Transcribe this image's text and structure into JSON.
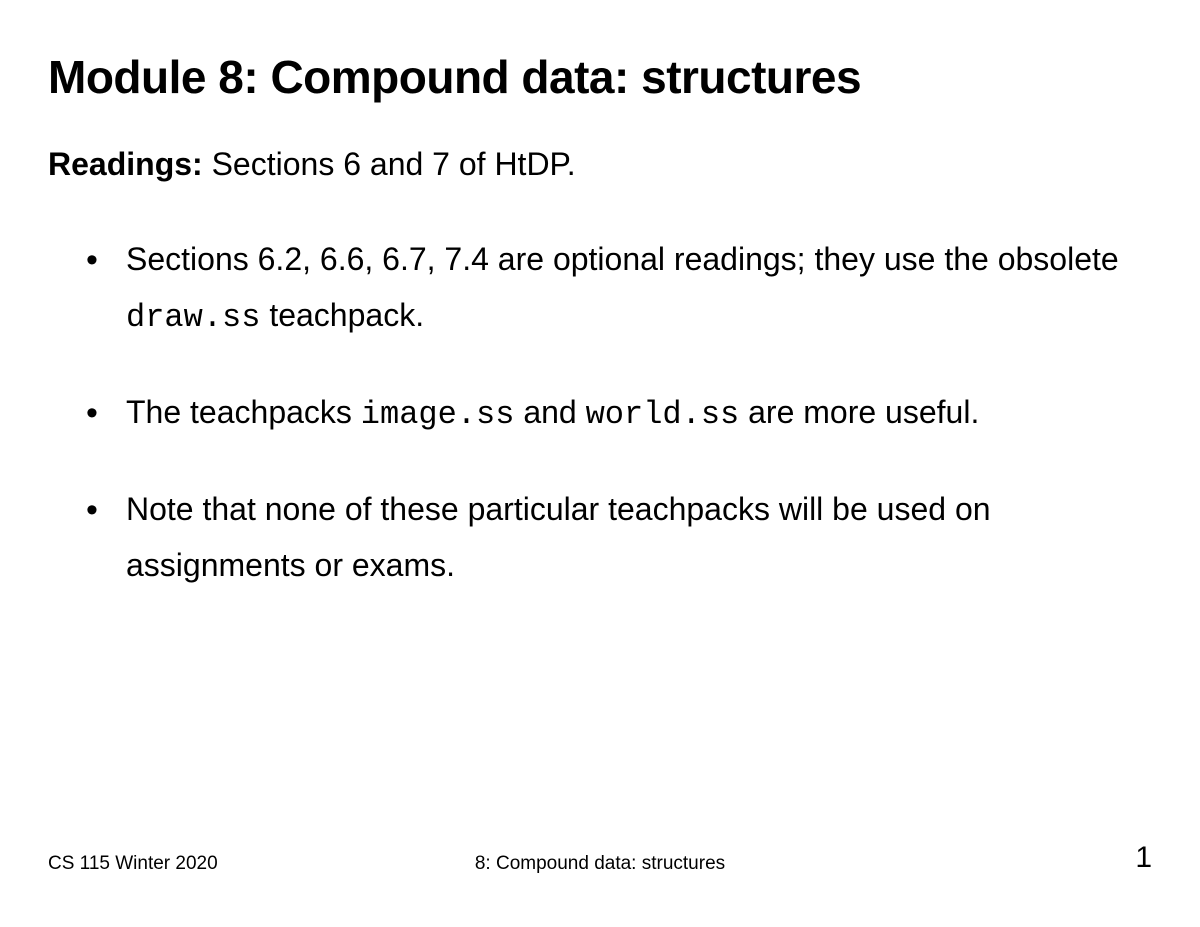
{
  "title": "Module 8: Compound data: structures",
  "readings": {
    "label": "Readings:",
    "text": " Sections 6 and 7 of HtDP."
  },
  "bullets": [
    {
      "pre": "Sections 6.2, 6.6, 6.7, 7.4 are optional readings; they use the obsolete ",
      "code1": "draw.ss",
      "mid": " teachpack.",
      "code2": "",
      "post": ""
    },
    {
      "pre": "The teachpacks ",
      "code1": "image.ss",
      "mid": " and ",
      "code2": "world.ss",
      "post": " are more useful."
    },
    {
      "pre": "Note that none of these particular teachpacks will be used on assignments or exams.",
      "code1": "",
      "mid": "",
      "code2": "",
      "post": ""
    }
  ],
  "footer": {
    "left": "CS 115 Winter 2020",
    "center": "8: Compound data: structures",
    "page": "1"
  },
  "style": {
    "background_color": "#ffffff",
    "text_color": "#000000",
    "title_fontsize": 46,
    "body_fontsize": 32,
    "footer_small_fontsize": 19,
    "footer_page_fontsize": 30,
    "mono_font": "Courier New"
  }
}
